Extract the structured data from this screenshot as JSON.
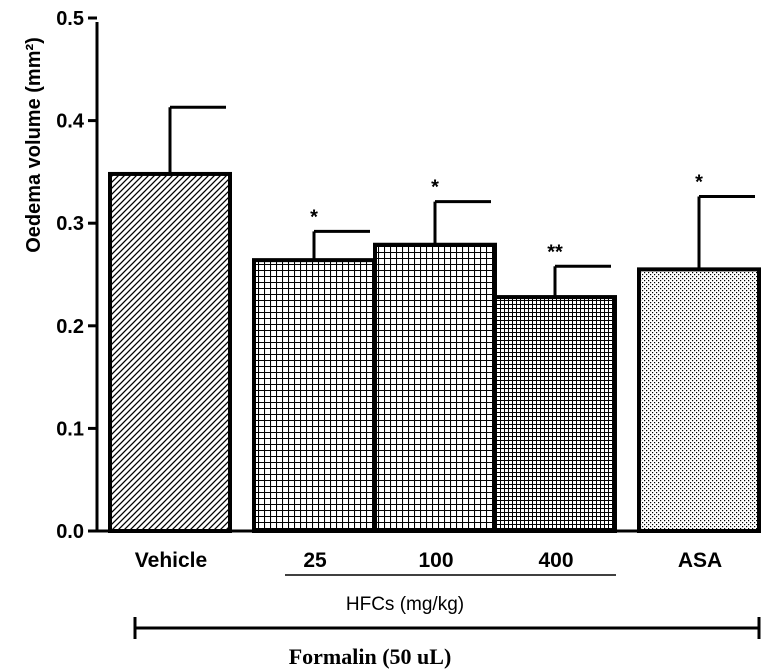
{
  "chart_data": {
    "type": "bar",
    "ylabel": "Oedema volume (mm²)",
    "ylim": [
      0,
      0.5
    ],
    "yticks": [
      "0.0",
      "0.1",
      "0.2",
      "0.3",
      "0.4",
      "0.5"
    ],
    "categories": [
      "Vehicle",
      "25",
      "100",
      "400",
      "ASA"
    ],
    "values": [
      0.348,
      0.264,
      0.279,
      0.228,
      0.255
    ],
    "errors": [
      0.065,
      0.028,
      0.042,
      0.03,
      0.071
    ],
    "significance": [
      "",
      "*",
      "*",
      "**",
      "*"
    ],
    "patterns": [
      "diagonal-hatch",
      "grid",
      "grid",
      "fine-grid",
      "dots"
    ],
    "group_label": "HFCs (mg/kg)",
    "footer_label": "Formalin (50 uL)",
    "grid": false,
    "legend": "none"
  }
}
